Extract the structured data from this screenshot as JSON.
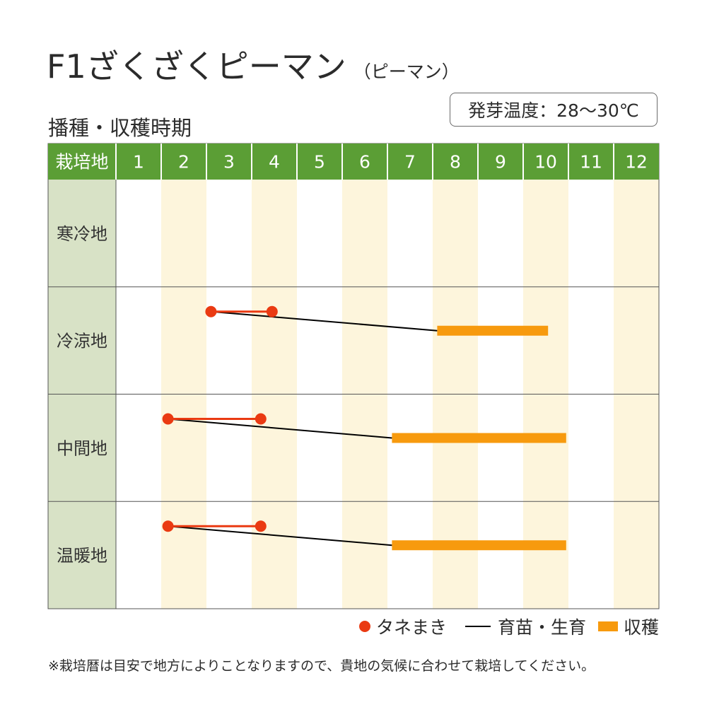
{
  "header": {
    "title": "F1ざくざくピーマン",
    "subtitle": "（ピーマン）",
    "section_title": "播種・収穫時期",
    "germination": "発芽温度：28～30℃"
  },
  "colors": {
    "header_green": "#5b9e35",
    "region_bg": "#d8e2c6",
    "stripe": "#fdf5dc",
    "sowing": "#ea3a12",
    "growing": "#000000",
    "harvest": "#f79a0e"
  },
  "chart_data": {
    "type": "gantt",
    "corner_label": "栽培地",
    "months": [
      "1",
      "2",
      "3",
      "4",
      "5",
      "6",
      "7",
      "8",
      "9",
      "10",
      "11",
      "12"
    ],
    "regions": [
      {
        "name": "寒冷地",
        "sowing": null,
        "growing_to": null,
        "harvest": null
      },
      {
        "name": "冷涼地",
        "sowing": [
          3.1,
          4.45
        ],
        "growing_to": 8.1,
        "harvest": [
          8.1,
          10.55
        ]
      },
      {
        "name": "中間地",
        "sowing": [
          2.15,
          4.2
        ],
        "growing_to": 7.1,
        "harvest": [
          7.1,
          10.95
        ]
      },
      {
        "name": "温暖地",
        "sowing": [
          2.15,
          4.2
        ],
        "growing_to": 7.1,
        "harvest": [
          7.1,
          10.95
        ]
      }
    ]
  },
  "legend": {
    "sowing": "タネまき",
    "growing": "育苗・生育",
    "harvest": "収穫"
  },
  "footer": {
    "note": "※栽培暦は目安で地方によりことなりますので、貴地の気候に合わせて栽培してください。"
  }
}
